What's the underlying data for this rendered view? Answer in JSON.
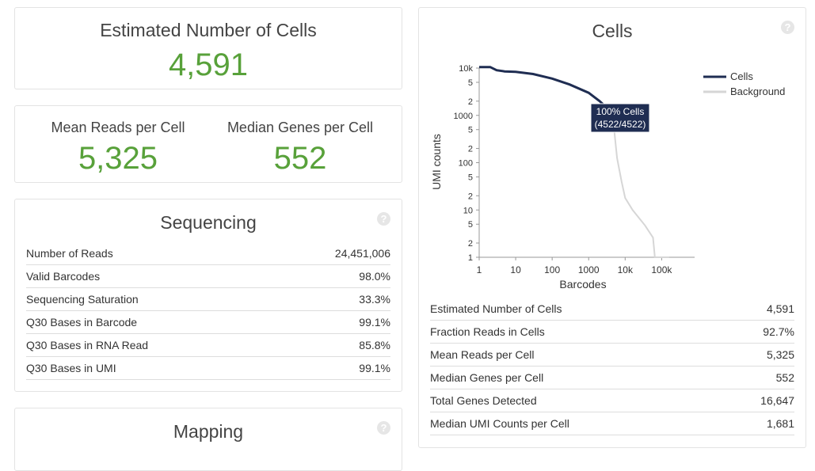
{
  "estimated_cells": {
    "label": "Estimated Number of Cells",
    "value": "4,591"
  },
  "mean_reads": {
    "label": "Mean Reads per Cell",
    "value": "5,325"
  },
  "median_genes": {
    "label": "Median Genes per Cell",
    "value": "552"
  },
  "sequencing": {
    "title": "Sequencing",
    "rows": [
      [
        "Number of Reads",
        "24,451,006"
      ],
      [
        "Valid Barcodes",
        "98.0%"
      ],
      [
        "Sequencing Saturation",
        "33.3%"
      ],
      [
        "Q30 Bases in Barcode",
        "99.1%"
      ],
      [
        "Q30 Bases in RNA Read",
        "85.8%"
      ],
      [
        "Q30 Bases in UMI",
        "99.1%"
      ]
    ]
  },
  "mapping": {
    "title": "Mapping"
  },
  "cells": {
    "title": "Cells",
    "rows": [
      [
        "Estimated Number of Cells",
        "4,591"
      ],
      [
        "Fraction Reads in Cells",
        "92.7%"
      ],
      [
        "Mean Reads per Cell",
        "5,325"
      ],
      [
        "Median Genes per Cell",
        "552"
      ],
      [
        "Total Genes Detected",
        "16,647"
      ],
      [
        "Median UMI Counts per Cell",
        "1,681"
      ]
    ]
  },
  "chart_data": {
    "type": "line",
    "xlabel": "Barcodes",
    "ylabel": "UMI counts",
    "xscale": "log",
    "yscale": "log",
    "xlim": [
      1,
      800000
    ],
    "ylim": [
      1,
      10000
    ],
    "xticks": [
      1,
      10,
      100,
      1000,
      {
        "value": 10000,
        "label": "10k"
      },
      {
        "value": 100000,
        "label": "100k"
      }
    ],
    "yticks": [
      {
        "value": 10000,
        "label": "10k"
      },
      {
        "value": 5000,
        "label": "5"
      },
      {
        "value": 2000,
        "label": "2"
      },
      1000,
      {
        "value": 500,
        "label": "5"
      },
      {
        "value": 200,
        "label": "2"
      },
      100,
      {
        "value": 50,
        "label": "5"
      },
      {
        "value": 20,
        "label": "2"
      },
      10,
      5,
      2,
      1
    ],
    "legend": "right",
    "series": [
      {
        "name": "Cells",
        "color": "#1f2d52",
        "x": [
          1,
          2,
          3,
          5,
          10,
          30,
          100,
          300,
          1000,
          2000,
          3000,
          4522
        ],
        "values": [
          10500,
          10500,
          9000,
          8500,
          8300,
          7500,
          6000,
          4500,
          3000,
          2000,
          1500,
          1100
        ]
      },
      {
        "name": "Background",
        "color": "#d6d6d6",
        "x": [
          4522,
          5000,
          6000,
          8000,
          10000,
          16000,
          35000,
          58000,
          65000,
          160000
        ],
        "values": [
          1100,
          500,
          125,
          40,
          18,
          10,
          4.7,
          2.6,
          1,
          1
        ]
      }
    ],
    "annotation": {
      "line1": "100% Cells",
      "line2": "(4522/4522)"
    }
  }
}
